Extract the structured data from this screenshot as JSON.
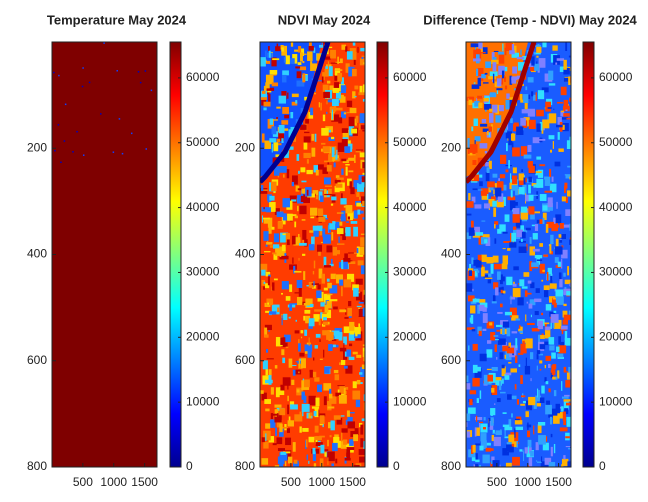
{
  "chart_data": [
    {
      "type": "image",
      "title": "Temperature May 2024",
      "colormap": "jet",
      "xlim": [
        0,
        1700
      ],
      "xticks": [
        500,
        1000,
        1500
      ],
      "ylim": [
        0,
        800
      ],
      "yticks": [
        200,
        400,
        600,
        800
      ],
      "clim": [
        0,
        65535
      ],
      "cticks": [
        0,
        10000,
        20000,
        30000,
        40000,
        50000,
        60000
      ]
    },
    {
      "type": "image",
      "title": "NDVI May 2024",
      "colormap": "jet",
      "xlim": [
        0,
        1700
      ],
      "xticks": [
        500,
        1000,
        1500
      ],
      "ylim": [
        0,
        800
      ],
      "yticks": [
        200,
        400,
        600,
        800
      ],
      "clim": [
        0,
        65535
      ],
      "cticks": [
        0,
        10000,
        20000,
        30000,
        40000,
        50000,
        60000
      ]
    },
    {
      "type": "image",
      "title": "Difference (Temp - NDVI) May 2024",
      "colormap": "jet",
      "xlim": [
        0,
        1700
      ],
      "xticks": [
        500,
        1000,
        1500
      ],
      "ylim": [
        0,
        800
      ],
      "yticks": [
        200,
        400,
        600,
        800
      ],
      "clim": [
        0,
        65535
      ],
      "cticks": [
        0,
        10000,
        20000,
        30000,
        40000,
        50000,
        60000
      ]
    }
  ]
}
